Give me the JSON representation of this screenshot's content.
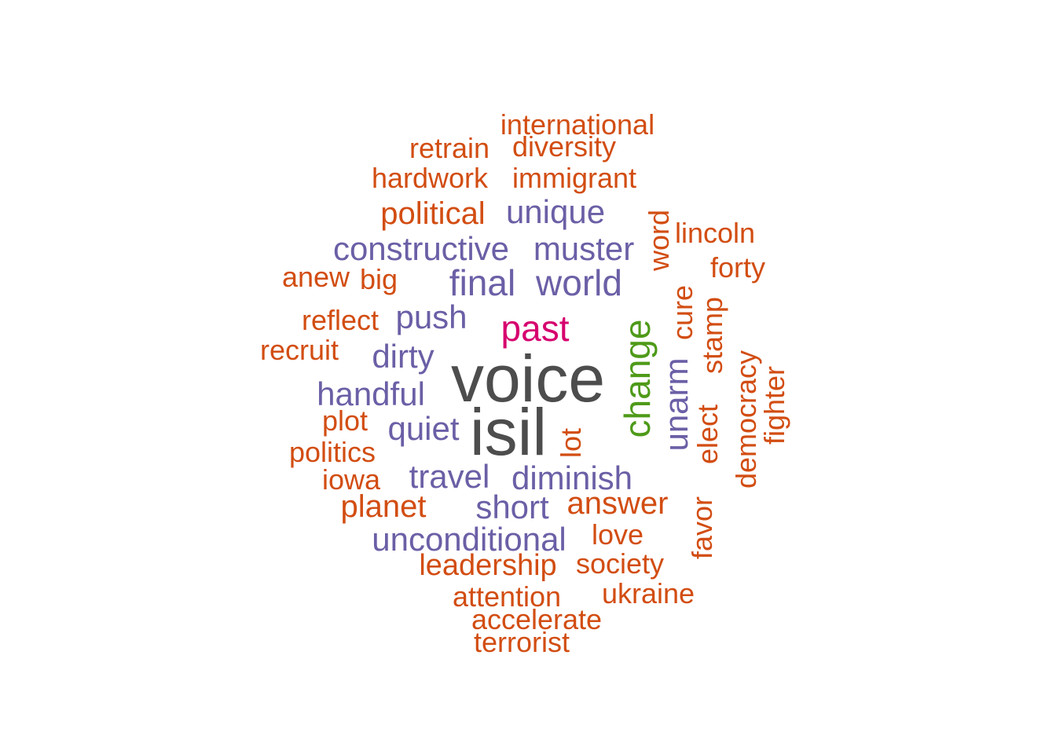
{
  "colors": {
    "dark": "#4d4d4d",
    "magenta": "#d6006e",
    "green": "#4e9a19",
    "purple": "#6b5fa6",
    "orange": "#d24d12"
  },
  "words": [
    {
      "text": "voice",
      "color": "dark"
    },
    {
      "text": "isil",
      "color": "dark"
    },
    {
      "text": "past",
      "color": "magenta"
    },
    {
      "text": "change",
      "color": "green"
    },
    {
      "text": "final",
      "color": "purple"
    },
    {
      "text": "world",
      "color": "purple"
    },
    {
      "text": "constructive",
      "color": "purple"
    },
    {
      "text": "muster",
      "color": "purple"
    },
    {
      "text": "unique",
      "color": "purple"
    },
    {
      "text": "push",
      "color": "purple"
    },
    {
      "text": "dirty",
      "color": "purple"
    },
    {
      "text": "handful",
      "color": "purple"
    },
    {
      "text": "quiet",
      "color": "purple"
    },
    {
      "text": "travel",
      "color": "purple"
    },
    {
      "text": "diminish",
      "color": "purple"
    },
    {
      "text": "short",
      "color": "purple"
    },
    {
      "text": "unconditional",
      "color": "purple"
    },
    {
      "text": "unarm",
      "color": "purple"
    },
    {
      "text": "international",
      "color": "orange"
    },
    {
      "text": "retrain",
      "color": "orange"
    },
    {
      "text": "diversity",
      "color": "orange"
    },
    {
      "text": "hardwork",
      "color": "orange"
    },
    {
      "text": "immigrant",
      "color": "orange"
    },
    {
      "text": "political",
      "color": "orange"
    },
    {
      "text": "word",
      "color": "orange"
    },
    {
      "text": "lincoln",
      "color": "orange"
    },
    {
      "text": "forty",
      "color": "orange"
    },
    {
      "text": "anew",
      "color": "orange"
    },
    {
      "text": "big",
      "color": "orange"
    },
    {
      "text": "reflect",
      "color": "orange"
    },
    {
      "text": "recruit",
      "color": "orange"
    },
    {
      "text": "cure",
      "color": "orange"
    },
    {
      "text": "stamp",
      "color": "orange"
    },
    {
      "text": "elect",
      "color": "orange"
    },
    {
      "text": "democracy",
      "color": "orange"
    },
    {
      "text": "fighter",
      "color": "orange"
    },
    {
      "text": "plot",
      "color": "orange"
    },
    {
      "text": "politics",
      "color": "orange"
    },
    {
      "text": "lot",
      "color": "orange"
    },
    {
      "text": "iowa",
      "color": "orange"
    },
    {
      "text": "planet",
      "color": "orange"
    },
    {
      "text": "answer",
      "color": "orange"
    },
    {
      "text": "favor",
      "color": "orange"
    },
    {
      "text": "love",
      "color": "orange"
    },
    {
      "text": "leadership",
      "color": "orange"
    },
    {
      "text": "society",
      "color": "orange"
    },
    {
      "text": "attention",
      "color": "orange"
    },
    {
      "text": "ukraine",
      "color": "orange"
    },
    {
      "text": "accelerate",
      "color": "orange"
    },
    {
      "text": "terrorist",
      "color": "orange"
    }
  ]
}
